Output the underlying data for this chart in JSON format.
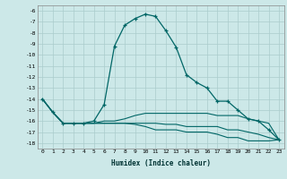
{
  "xlabel": "Humidex (Indice chaleur)",
  "background_color": "#cce8e8",
  "grid_color": "#aacccc",
  "line_color": "#006666",
  "xlim": [
    -0.5,
    23.5
  ],
  "ylim": [
    -18.5,
    -5.5
  ],
  "yticks": [
    -6,
    -7,
    -8,
    -9,
    -10,
    -11,
    -12,
    -13,
    -14,
    -15,
    -16,
    -17,
    -18
  ],
  "xticks": [
    0,
    1,
    2,
    3,
    4,
    5,
    6,
    7,
    8,
    9,
    10,
    11,
    12,
    13,
    14,
    15,
    16,
    17,
    18,
    19,
    20,
    21,
    22,
    23
  ],
  "line1_x": [
    0,
    1,
    2,
    3,
    4,
    5,
    6,
    7,
    8,
    9,
    10,
    11,
    12,
    13,
    14,
    15,
    16,
    17,
    18,
    19,
    20,
    21,
    22,
    23
  ],
  "line1_y": [
    -14.0,
    -15.2,
    -16.2,
    -16.2,
    -16.2,
    -16.0,
    -14.5,
    -9.2,
    -7.3,
    -6.7,
    -6.3,
    -6.5,
    -7.8,
    -9.3,
    -11.8,
    -12.5,
    -13.0,
    -14.2,
    -14.2,
    -15.0,
    -15.8,
    -16.0,
    -16.8,
    -17.7
  ],
  "line2_x": [
    0,
    1,
    2,
    3,
    4,
    5,
    6,
    7,
    8,
    9,
    10,
    11,
    12,
    13,
    14,
    15,
    16,
    17,
    18,
    19,
    20,
    21,
    22,
    23
  ],
  "line2_y": [
    -14.0,
    -15.2,
    -16.2,
    -16.2,
    -16.2,
    -16.2,
    -16.0,
    -16.0,
    -15.8,
    -15.5,
    -15.3,
    -15.3,
    -15.3,
    -15.3,
    -15.3,
    -15.3,
    -15.3,
    -15.5,
    -15.5,
    -15.5,
    -15.8,
    -16.0,
    -16.2,
    -17.7
  ],
  "line3_x": [
    0,
    1,
    2,
    3,
    4,
    5,
    6,
    7,
    8,
    9,
    10,
    11,
    12,
    13,
    14,
    15,
    16,
    17,
    18,
    19,
    20,
    21,
    22,
    23
  ],
  "line3_y": [
    -14.0,
    -15.2,
    -16.2,
    -16.2,
    -16.2,
    -16.2,
    -16.2,
    -16.2,
    -16.2,
    -16.2,
    -16.2,
    -16.2,
    -16.3,
    -16.3,
    -16.5,
    -16.5,
    -16.5,
    -16.5,
    -16.8,
    -16.8,
    -17.0,
    -17.2,
    -17.5,
    -17.7
  ],
  "line4_x": [
    0,
    1,
    2,
    3,
    4,
    5,
    6,
    7,
    8,
    9,
    10,
    11,
    12,
    13,
    14,
    15,
    16,
    17,
    18,
    19,
    20,
    21,
    22,
    23
  ],
  "line4_y": [
    -14.0,
    -15.2,
    -16.2,
    -16.2,
    -16.2,
    -16.2,
    -16.2,
    -16.2,
    -16.2,
    -16.3,
    -16.5,
    -16.8,
    -16.8,
    -16.8,
    -17.0,
    -17.0,
    -17.0,
    -17.2,
    -17.5,
    -17.5,
    -17.8,
    -17.8,
    -17.8,
    -17.7
  ]
}
